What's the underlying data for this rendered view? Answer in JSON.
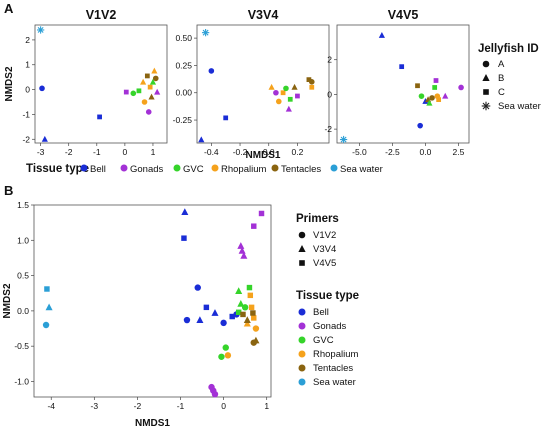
{
  "colors": {
    "Bell": "#1a2dd6",
    "Gonads": "#a331d6",
    "GVC": "#35d42a",
    "Rhopalium": "#f5a21c",
    "Tentacles": "#8a6410",
    "Sea water": "#2b9fd6"
  },
  "legends": {
    "jellyfish": {
      "title": "Jellyfish ID",
      "items": [
        {
          "label": "A",
          "shape": "circle"
        },
        {
          "label": "B",
          "shape": "triangle"
        },
        {
          "label": "C",
          "shape": "square"
        },
        {
          "label": "Sea water",
          "shape": "asterisk"
        }
      ]
    },
    "tissue_a": {
      "title": "Tissue type",
      "items": [
        "Bell",
        "Gonads",
        "GVC",
        "Rhopalium",
        "Tentacles",
        "Sea water"
      ]
    },
    "primers": {
      "title": "Primers",
      "items": [
        {
          "label": "V1V2",
          "shape": "circle"
        },
        {
          "label": "V3V4",
          "shape": "triangle"
        },
        {
          "label": "V4V5",
          "shape": "square"
        }
      ]
    },
    "tissue_b": {
      "title": "Tissue type",
      "items": [
        "Bell",
        "Gonads",
        "GVC",
        "Rhopalium",
        "Tentacles",
        "Sea water"
      ]
    }
  },
  "chart_data": [
    {
      "panel": "A",
      "type": "scatter",
      "title": "V1V2",
      "xlabel": "",
      "ylabel": "NMDS2",
      "xlim": [
        -3.2,
        1.5
      ],
      "ylim": [
        -2.15,
        2.6
      ],
      "xticks": [
        -3,
        -2,
        -1,
        0,
        1
      ],
      "yticks": [
        -2,
        -1,
        0,
        1,
        2
      ],
      "points": [
        {
          "x": -3.0,
          "y": 2.4,
          "tissue": "Sea water",
          "shape": "asterisk"
        },
        {
          "x": -2.95,
          "y": 0.05,
          "tissue": "Bell",
          "shape": "circle"
        },
        {
          "x": -2.85,
          "y": -2.0,
          "tissue": "Bell",
          "shape": "triangle"
        },
        {
          "x": -0.9,
          "y": -1.1,
          "tissue": "Bell",
          "shape": "square"
        },
        {
          "x": 0.05,
          "y": -0.1,
          "tissue": "Gonads",
          "shape": "square"
        },
        {
          "x": 0.3,
          "y": -0.15,
          "tissue": "GVC",
          "shape": "circle"
        },
        {
          "x": 0.5,
          "y": -0.05,
          "tissue": "GVC",
          "shape": "square"
        },
        {
          "x": 0.65,
          "y": 0.3,
          "tissue": "Rhopalium",
          "shape": "triangle"
        },
        {
          "x": 0.7,
          "y": -0.5,
          "tissue": "Rhopalium",
          "shape": "circle"
        },
        {
          "x": 0.8,
          "y": 0.55,
          "tissue": "Tentacles",
          "shape": "square"
        },
        {
          "x": 0.85,
          "y": -0.9,
          "tissue": "Gonads",
          "shape": "circle"
        },
        {
          "x": 0.9,
          "y": 0.1,
          "tissue": "Rhopalium",
          "shape": "square"
        },
        {
          "x": 1.0,
          "y": 0.3,
          "tissue": "GVC",
          "shape": "triangle"
        },
        {
          "x": 1.05,
          "y": 0.75,
          "tissue": "Rhopalium",
          "shape": "triangle"
        },
        {
          "x": 1.15,
          "y": -0.1,
          "tissue": "Gonads",
          "shape": "triangle"
        },
        {
          "x": 0.95,
          "y": -0.3,
          "tissue": "Tentacles",
          "shape": "triangle"
        },
        {
          "x": 1.1,
          "y": 0.45,
          "tissue": "Tentacles",
          "shape": "circle"
        }
      ]
    },
    {
      "panel": "A",
      "type": "scatter",
      "title": "V3V4",
      "xlabel": "NMDS1",
      "ylabel": "",
      "xlim": [
        -0.5,
        0.42
      ],
      "ylim": [
        -0.46,
        0.62
      ],
      "xticks": [
        -0.4,
        -0.2,
        0.0,
        0.2
      ],
      "yticks": [
        -0.25,
        0.0,
        0.25,
        0.5
      ],
      "points": [
        {
          "x": -0.44,
          "y": 0.55,
          "tissue": "Sea water",
          "shape": "asterisk"
        },
        {
          "x": -0.4,
          "y": 0.2,
          "tissue": "Bell",
          "shape": "circle"
        },
        {
          "x": -0.47,
          "y": -0.43,
          "tissue": "Bell",
          "shape": "triangle"
        },
        {
          "x": -0.3,
          "y": -0.23,
          "tissue": "Bell",
          "shape": "square"
        },
        {
          "x": 0.02,
          "y": 0.05,
          "tissue": "Rhopalium",
          "shape": "triangle"
        },
        {
          "x": 0.05,
          "y": 0.0,
          "tissue": "Gonads",
          "shape": "circle"
        },
        {
          "x": 0.07,
          "y": -0.08,
          "tissue": "Rhopalium",
          "shape": "circle"
        },
        {
          "x": 0.1,
          "y": 0.0,
          "tissue": "Rhopalium",
          "shape": "square"
        },
        {
          "x": 0.12,
          "y": 0.04,
          "tissue": "GVC",
          "shape": "circle"
        },
        {
          "x": 0.15,
          "y": -0.06,
          "tissue": "GVC",
          "shape": "square"
        },
        {
          "x": 0.14,
          "y": -0.15,
          "tissue": "Gonads",
          "shape": "triangle"
        },
        {
          "x": 0.18,
          "y": 0.05,
          "tissue": "Tentacles",
          "shape": "triangle"
        },
        {
          "x": 0.2,
          "y": -0.03,
          "tissue": "Gonads",
          "shape": "square"
        },
        {
          "x": 0.3,
          "y": 0.1,
          "tissue": "Tentacles",
          "shape": "circle"
        },
        {
          "x": 0.3,
          "y": 0.05,
          "tissue": "Rhopalium",
          "shape": "square"
        },
        {
          "x": 0.28,
          "y": 0.12,
          "tissue": "Tentacles",
          "shape": "square"
        }
      ]
    },
    {
      "panel": "A",
      "type": "scatter",
      "title": "V4V5",
      "xlabel": "",
      "ylabel": "",
      "xlim": [
        -6.7,
        3.3
      ],
      "ylim": [
        -2.8,
        4.0
      ],
      "xticks": [
        -5.0,
        -2.5,
        0.0,
        2.5
      ],
      "yticks": [
        -2,
        0,
        2
      ],
      "points": [
        {
          "x": -6.2,
          "y": -2.6,
          "tissue": "Sea water",
          "shape": "asterisk"
        },
        {
          "x": -3.3,
          "y": 3.4,
          "tissue": "Bell",
          "shape": "triangle"
        },
        {
          "x": -1.8,
          "y": 1.6,
          "tissue": "Bell",
          "shape": "square"
        },
        {
          "x": -0.4,
          "y": -1.8,
          "tissue": "Bell",
          "shape": "circle"
        },
        {
          "x": -0.6,
          "y": 0.5,
          "tissue": "Tentacles",
          "shape": "square"
        },
        {
          "x": -0.3,
          "y": -0.1,
          "tissue": "GVC",
          "shape": "circle"
        },
        {
          "x": 0.0,
          "y": -0.4,
          "tissue": "Bell",
          "shape": "triangle"
        },
        {
          "x": 0.2,
          "y": -0.3,
          "tissue": "Tentacles",
          "shape": "triangle"
        },
        {
          "x": 0.5,
          "y": -0.2,
          "tissue": "Tentacles",
          "shape": "circle"
        },
        {
          "x": 0.7,
          "y": 0.4,
          "tissue": "GVC",
          "shape": "square"
        },
        {
          "x": 0.8,
          "y": 0.8,
          "tissue": "Gonads",
          "shape": "square"
        },
        {
          "x": 0.9,
          "y": -0.1,
          "tissue": "Rhopalium",
          "shape": "circle"
        },
        {
          "x": 1.0,
          "y": -0.3,
          "tissue": "Rhopalium",
          "shape": "square"
        },
        {
          "x": 1.5,
          "y": -0.1,
          "tissue": "Gonads",
          "shape": "triangle"
        },
        {
          "x": 2.7,
          "y": 0.4,
          "tissue": "Gonads",
          "shape": "circle"
        },
        {
          "x": 0.3,
          "y": -0.5,
          "tissue": "GVC",
          "shape": "triangle"
        }
      ]
    },
    {
      "panel": "B",
      "type": "scatter",
      "title": "",
      "xlabel": "NMDS1",
      "ylabel": "NMDS2",
      "xlim": [
        -4.4,
        1.1
      ],
      "ylim": [
        -1.22,
        1.5
      ],
      "xticks": [
        -4,
        -3,
        -2,
        -1,
        0,
        1
      ],
      "yticks": [
        -1.0,
        -0.5,
        0.0,
        0.5,
        1.0,
        1.5
      ],
      "points": [
        {
          "x": -4.1,
          "y": 0.31,
          "tissue": "Sea water",
          "shape": "square"
        },
        {
          "x": -4.05,
          "y": 0.05,
          "tissue": "Sea water",
          "shape": "triangle"
        },
        {
          "x": -4.12,
          "y": -0.2,
          "tissue": "Sea water",
          "shape": "circle"
        },
        {
          "x": -0.9,
          "y": 1.4,
          "tissue": "Bell",
          "shape": "triangle"
        },
        {
          "x": -0.92,
          "y": 1.03,
          "tissue": "Bell",
          "shape": "square"
        },
        {
          "x": -0.6,
          "y": 0.33,
          "tissue": "Bell",
          "shape": "circle"
        },
        {
          "x": -0.4,
          "y": 0.05,
          "tissue": "Bell",
          "shape": "square"
        },
        {
          "x": -0.85,
          "y": -0.13,
          "tissue": "Bell",
          "shape": "circle"
        },
        {
          "x": -0.55,
          "y": -0.13,
          "tissue": "Bell",
          "shape": "triangle"
        },
        {
          "x": -0.2,
          "y": -0.03,
          "tissue": "Bell",
          "shape": "triangle"
        },
        {
          "x": 0.0,
          "y": -0.17,
          "tissue": "Bell",
          "shape": "circle"
        },
        {
          "x": 0.2,
          "y": -0.08,
          "tissue": "Bell",
          "shape": "square"
        },
        {
          "x": 0.3,
          "y": -0.05,
          "tissue": "Bell",
          "shape": "circle"
        },
        {
          "x": 0.88,
          "y": 1.38,
          "tissue": "Gonads",
          "shape": "square"
        },
        {
          "x": 0.7,
          "y": 1.2,
          "tissue": "Gonads",
          "shape": "square"
        },
        {
          "x": 0.4,
          "y": 0.92,
          "tissue": "Gonads",
          "shape": "triangle"
        },
        {
          "x": 0.43,
          "y": 0.85,
          "tissue": "Gonads",
          "shape": "triangle"
        },
        {
          "x": 0.47,
          "y": 0.78,
          "tissue": "Gonads",
          "shape": "triangle"
        },
        {
          "x": -0.28,
          "y": -1.08,
          "tissue": "Gonads",
          "shape": "circle"
        },
        {
          "x": -0.24,
          "y": -1.13,
          "tissue": "Gonads",
          "shape": "circle"
        },
        {
          "x": -0.2,
          "y": -1.18,
          "tissue": "Gonads",
          "shape": "circle"
        },
        {
          "x": 0.35,
          "y": 0.28,
          "tissue": "GVC",
          "shape": "triangle"
        },
        {
          "x": 0.6,
          "y": 0.33,
          "tissue": "GVC",
          "shape": "square"
        },
        {
          "x": 0.4,
          "y": 0.1,
          "tissue": "GVC",
          "shape": "triangle"
        },
        {
          "x": 0.35,
          "y": -0.02,
          "tissue": "GVC",
          "shape": "square"
        },
        {
          "x": 0.5,
          "y": 0.05,
          "tissue": "GVC",
          "shape": "circle"
        },
        {
          "x": 0.05,
          "y": -0.52,
          "tissue": "GVC",
          "shape": "circle"
        },
        {
          "x": -0.05,
          "y": -0.65,
          "tissue": "GVC",
          "shape": "circle"
        },
        {
          "x": 0.62,
          "y": 0.22,
          "tissue": "Rhopalium",
          "shape": "square"
        },
        {
          "x": 0.65,
          "y": 0.05,
          "tissue": "Rhopalium",
          "shape": "square"
        },
        {
          "x": 0.7,
          "y": -0.1,
          "tissue": "Rhopalium",
          "shape": "square"
        },
        {
          "x": 0.75,
          "y": -0.25,
          "tissue": "Rhopalium",
          "shape": "circle"
        },
        {
          "x": 0.55,
          "y": -0.18,
          "tissue": "Rhopalium",
          "shape": "triangle"
        },
        {
          "x": 0.1,
          "y": -0.63,
          "tissue": "Rhopalium",
          "shape": "circle"
        },
        {
          "x": 0.45,
          "y": -0.05,
          "tissue": "Tentacles",
          "shape": "square"
        },
        {
          "x": 0.55,
          "y": -0.13,
          "tissue": "Tentacles",
          "shape": "triangle"
        },
        {
          "x": 0.75,
          "y": -0.42,
          "tissue": "Tentacles",
          "shape": "triangle"
        },
        {
          "x": 0.7,
          "y": -0.45,
          "tissue": "Tentacles",
          "shape": "circle"
        },
        {
          "x": 0.68,
          "y": -0.03,
          "tissue": "Tentacles",
          "shape": "square"
        }
      ]
    }
  ],
  "labels": {
    "panel_a": "A",
    "panel_b": "B",
    "nmds1": "NMDS1",
    "nmds2": "NMDS2"
  }
}
